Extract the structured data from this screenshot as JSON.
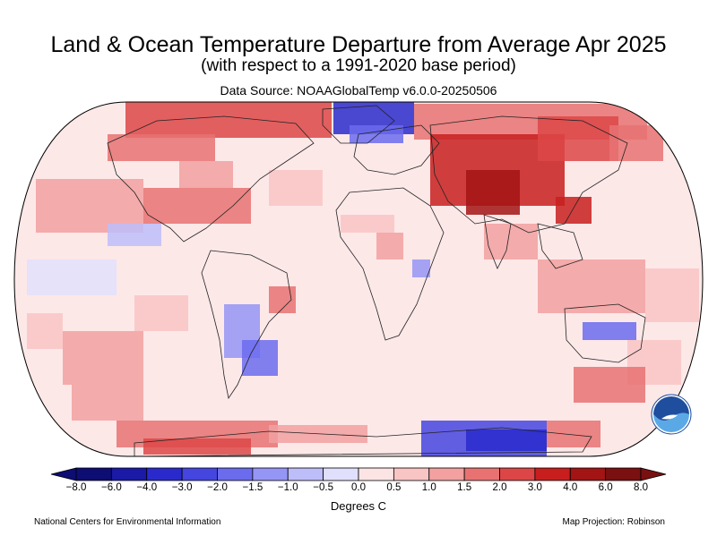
{
  "header": {
    "title": "Land & Ocean Temperature Departure from Average Apr 2025",
    "subtitle": "(with respect to a 1991-2020 base period)",
    "source": "Data Source: NOAAGlobalTemp v6.0.0-20250506"
  },
  "legend": {
    "units": "Degrees C",
    "ticks": [
      "−8.0",
      "−6.0",
      "−4.0",
      "−3.0",
      "−2.0",
      "−1.5",
      "−1.0",
      "−0.5",
      "0.0",
      "0.5",
      "1.0",
      "1.5",
      "2.0",
      "3.0",
      "4.0",
      "6.0",
      "8.0"
    ],
    "colors": [
      "#0d0d73",
      "#1a1aa6",
      "#2a2acc",
      "#4545e0",
      "#6b6bee",
      "#9595f5",
      "#bdbdfa",
      "#e0e0fc",
      "#fff6f6",
      "#fde4e4",
      "#f9c4c4",
      "#f2a0a0",
      "#e87272",
      "#dd4646",
      "#c81e1e",
      "#a31414",
      "#7a1010"
    ]
  },
  "footer": {
    "left": "National Centers for Environmental Information",
    "right": "Map Projection: Robinson"
  },
  "logo": {
    "text": "NOAA"
  }
}
